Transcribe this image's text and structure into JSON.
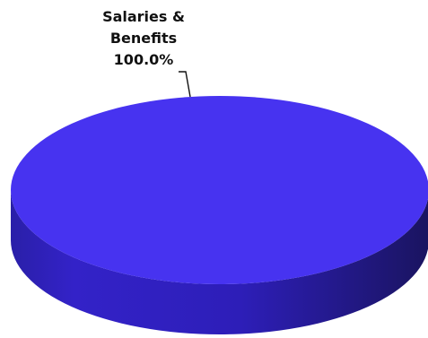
{
  "chart_data": {
    "type": "pie",
    "title": "",
    "categories": [
      "Salaries & Benefits"
    ],
    "values": [
      100.0
    ],
    "label_lines": [
      "Salaries &",
      "Benefits"
    ],
    "percent_labels": [
      "100.0%"
    ],
    "colors": {
      "top": "#4733f0",
      "side_dark": "#1a1460",
      "side_mid": "#3322c8",
      "side_light": "#2a1fa8"
    },
    "legend": "none",
    "three_d": true
  }
}
